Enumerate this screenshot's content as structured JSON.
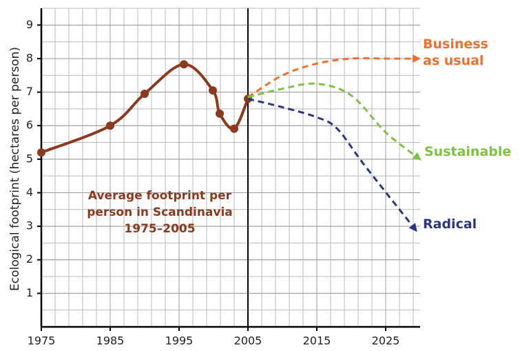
{
  "chart_data": {
    "type": "line",
    "ylabel": "Ecological footprint (hectares per person)",
    "annotation": [
      "Average footprint per",
      "person in Scandinavia",
      "1975–2005"
    ],
    "xlim": [
      1975,
      2030
    ],
    "xticks": [
      1975,
      1985,
      1995,
      2005,
      2015,
      2025
    ],
    "ylim": [
      0,
      9.5
    ],
    "yticks": [
      1,
      2,
      3,
      4,
      5,
      6,
      7,
      8,
      9
    ],
    "grid": true,
    "vline": 2005,
    "series": [
      {
        "color": "#8b3a1e",
        "x": [
          1975,
          1985,
          1990,
          1995.7,
          1999.9,
          2000.9,
          2003,
          2005
        ],
        "values": [
          5.2,
          6.0,
          6.95,
          7.83,
          7.05,
          6.36,
          5.91,
          6.8
        ]
      },
      {
        "name": "Business as usual",
        "color": "#ec7030",
        "x": [
          2005,
          2010,
          2015,
          2020,
          2025,
          2029.5
        ],
        "values": [
          6.85,
          7.5,
          7.85,
          8.0,
          8.0,
          8.0
        ]
      },
      {
        "name": "Sustainable",
        "color": "#7dc243",
        "x": [
          2005,
          2010,
          2015,
          2020,
          2025,
          2029.7
        ],
        "values": [
          6.85,
          7.1,
          7.25,
          6.9,
          5.8,
          5.04
        ]
      },
      {
        "name": "Radical",
        "color": "#2b3585",
        "x": [
          2005,
          2010,
          2015,
          2018,
          2022,
          2029.2
        ],
        "values": [
          6.8,
          6.55,
          6.25,
          5.9,
          4.8,
          2.93
        ]
      }
    ]
  }
}
